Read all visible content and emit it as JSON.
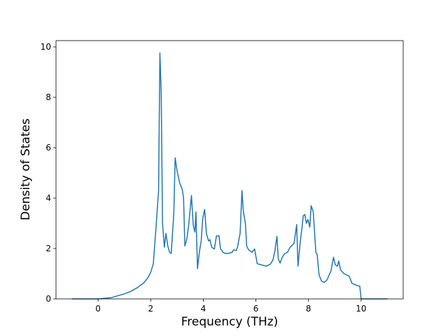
{
  "chart_data": {
    "type": "line",
    "x_label": "Frequency (THz)",
    "y_label": "Density of States",
    "xlim": [
      -1.6,
      11.6
    ],
    "ylim": [
      0,
      10.25
    ],
    "xticks": [
      0,
      2,
      4,
      6,
      8,
      10
    ],
    "yticks": [
      0,
      2,
      4,
      6,
      8,
      10
    ],
    "series": [
      {
        "color": "#1f77b4",
        "x": [
          -1,
          -0.5,
          0,
          0.5,
          1,
          1.25,
          1.5,
          1.75,
          1.9,
          2.0,
          2.1,
          2.2,
          2.3,
          2.35,
          2.4,
          2.45,
          2.52,
          2.58,
          2.65,
          2.72,
          2.78,
          2.88,
          2.93,
          3.0,
          3.1,
          3.2,
          3.25,
          3.3,
          3.38,
          3.45,
          3.55,
          3.62,
          3.68,
          3.72,
          3.78,
          3.85,
          3.92,
          3.98,
          4.05,
          4.12,
          4.2,
          4.25,
          4.32,
          4.42,
          4.5,
          4.6,
          4.65,
          4.75,
          4.85,
          5.0,
          5.1,
          5.15,
          5.25,
          5.3,
          5.4,
          5.47,
          5.52,
          5.6,
          5.65,
          5.72,
          5.85,
          5.95,
          6.05,
          6.2,
          6.4,
          6.55,
          6.65,
          6.72,
          6.8,
          6.85,
          6.92,
          7.0,
          7.1,
          7.2,
          7.3,
          7.45,
          7.55,
          7.6,
          7.68,
          7.75,
          7.8,
          7.86,
          7.92,
          7.98,
          8.05,
          8.1,
          8.18,
          8.28,
          8.33,
          8.4,
          8.5,
          8.6,
          8.7,
          8.85,
          8.95,
          9.02,
          9.1,
          9.15,
          9.22,
          9.35,
          9.55,
          9.65,
          9.8,
          9.95,
          10.0,
          11
        ],
        "values": [
          0,
          0,
          0,
          0.05,
          0.2,
          0.3,
          0.45,
          0.65,
          0.85,
          1.05,
          1.4,
          2.8,
          4.3,
          9.76,
          8.2,
          3.0,
          2.05,
          2.6,
          2.1,
          1.85,
          1.8,
          3.4,
          5.6,
          5.1,
          4.6,
          4.35,
          4.0,
          2.1,
          2.4,
          3.0,
          4.1,
          2.9,
          2.65,
          3.45,
          1.2,
          1.85,
          2.3,
          3.2,
          3.55,
          2.6,
          2.3,
          2.35,
          2.05,
          1.98,
          2.5,
          2.5,
          2.0,
          1.85,
          1.8,
          1.82,
          1.85,
          1.95,
          1.92,
          2.05,
          2.6,
          4.3,
          3.5,
          3.0,
          2.1,
          1.95,
          1.85,
          1.98,
          1.4,
          1.35,
          1.3,
          1.38,
          1.55,
          1.9,
          2.48,
          1.6,
          1.42,
          1.65,
          1.8,
          1.85,
          2.05,
          2.2,
          2.95,
          1.3,
          2.2,
          2.8,
          3.3,
          3.35,
          3.0,
          3.15,
          2.85,
          3.7,
          3.45,
          1.85,
          1.75,
          0.95,
          0.7,
          0.65,
          0.75,
          1.1,
          1.65,
          1.35,
          1.3,
          1.5,
          1.15,
          1.0,
          0.9,
          0.62,
          0.55,
          0.5,
          0,
          0
        ]
      }
    ]
  }
}
